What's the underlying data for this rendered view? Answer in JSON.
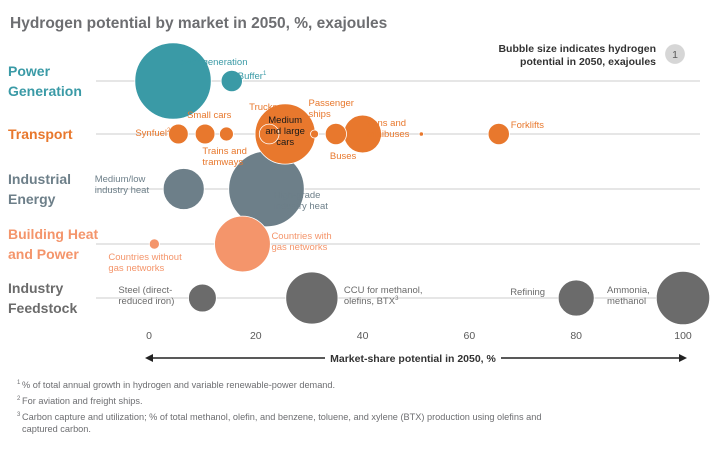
{
  "chart_data": {
    "type": "scatter",
    "title": "Hydrogen potential by market in 2050, %, exajoules",
    "xlabel": "Market-share potential in 2050, %",
    "xlim": [
      0,
      100
    ],
    "xticks": [
      "0",
      "20",
      "40",
      "60",
      "80",
      "100"
    ],
    "legend": {
      "text_line1": "Bubble size indicates hydrogen",
      "text_line2": "potential in 2050, exajoules",
      "sample_label": "1",
      "sample_value": 1,
      "placement": "top-right"
    },
    "colors": {
      "power": "#3a9aa6",
      "transport": "#e8782d",
      "industrial": "#6d7f89",
      "building": "#f4956b",
      "feedstock": "#6b6b6b"
    },
    "categories": [
      {
        "name_lines": [
          "Power",
          "Generation"
        ],
        "color_key": "power"
      },
      {
        "name_lines": [
          "Transport"
        ],
        "color_key": "transport"
      },
      {
        "name_lines": [
          "Industrial",
          "Energy"
        ],
        "color_key": "industrial"
      },
      {
        "name_lines": [
          "Building Heat",
          "and Power"
        ],
        "color_key": "building"
      },
      {
        "name_lines": [
          "Industry",
          "Feedstock"
        ],
        "color_key": "feedstock"
      }
    ],
    "points": [
      {
        "category": 0,
        "x": 4.5,
        "size": 4.5,
        "label_lines": [
          "Power generation"
        ]
      },
      {
        "category": 0,
        "x": 15.5,
        "size": 0.35,
        "label_lines": [
          "Buffer"
        ],
        "label_sup": "1"
      },
      {
        "category": 1,
        "x": 5.5,
        "size": 0.3,
        "label_lines": [
          "Synfuel"
        ],
        "label_sup": "2"
      },
      {
        "category": 1,
        "x": 10.5,
        "size": 0.3,
        "label_lines": [
          "Small cars"
        ]
      },
      {
        "category": 1,
        "x": 14.5,
        "size": 0.15,
        "label_lines": [
          "Trains and",
          "tramways"
        ]
      },
      {
        "category": 1,
        "x": 22.5,
        "size": 0.3,
        "label_lines": [
          "Trucks"
        ]
      },
      {
        "category": 1,
        "x": 25.5,
        "size": 2.8,
        "label_lines": [
          "Medium",
          "and large",
          "cars"
        ]
      },
      {
        "category": 1,
        "x": 31,
        "size": 0.05,
        "label_lines": [
          "Passenger",
          "ships"
        ]
      },
      {
        "category": 1,
        "x": 35,
        "size": 0.35,
        "label_lines": [
          "Buses"
        ]
      },
      {
        "category": 1,
        "x": 40,
        "size": 1.1,
        "label_lines": [
          "Vans and",
          "minibuses"
        ]
      },
      {
        "category": 1,
        "x": 51,
        "size": 0.015,
        "label_lines": []
      },
      {
        "category": 1,
        "x": 65.5,
        "size": 0.35,
        "label_lines": [
          "Forklifts"
        ]
      },
      {
        "category": 2,
        "x": 6.5,
        "size": 1.3,
        "label_lines": [
          "Medium/low",
          "industry heat"
        ]
      },
      {
        "category": 2,
        "x": 22,
        "size": 4.4,
        "label_lines": [
          "High-grade",
          "industry heat"
        ]
      },
      {
        "category": 3,
        "x": 1,
        "size": 0.08,
        "label_lines": [
          "Countries without",
          "gas networks"
        ]
      },
      {
        "category": 3,
        "x": 17.5,
        "size": 2.4,
        "label_lines": [
          "Countries with",
          "gas networks"
        ]
      },
      {
        "category": 4,
        "x": 10,
        "size": 0.6,
        "label_lines": [
          "Steel (direct-",
          "reduced iron)"
        ]
      },
      {
        "category": 4,
        "x": 30.5,
        "size": 2.1,
        "label_lines": [
          "CCU for methanol,",
          "olefins, BTX"
        ],
        "label_sup": "3"
      },
      {
        "category": 4,
        "x": 80,
        "size": 1.0,
        "label_lines": [
          "Refining"
        ]
      },
      {
        "category": 4,
        "x": 100,
        "size": 2.2,
        "label_lines": [
          "Ammonia,",
          "methanol"
        ]
      }
    ]
  },
  "footnotes": [
    {
      "num": "1",
      "lines": [
        "% of total annual growth in hydrogen and variable renewable-power demand."
      ]
    },
    {
      "num": "2",
      "lines": [
        "For aviation and freight ships."
      ]
    },
    {
      "num": "3",
      "lines": [
        "Carbon capture and utilization; % of total methanol, olefin, and benzene, toluene, and xylene (BTX) production using olefins and",
        "captured carbon."
      ]
    }
  ]
}
